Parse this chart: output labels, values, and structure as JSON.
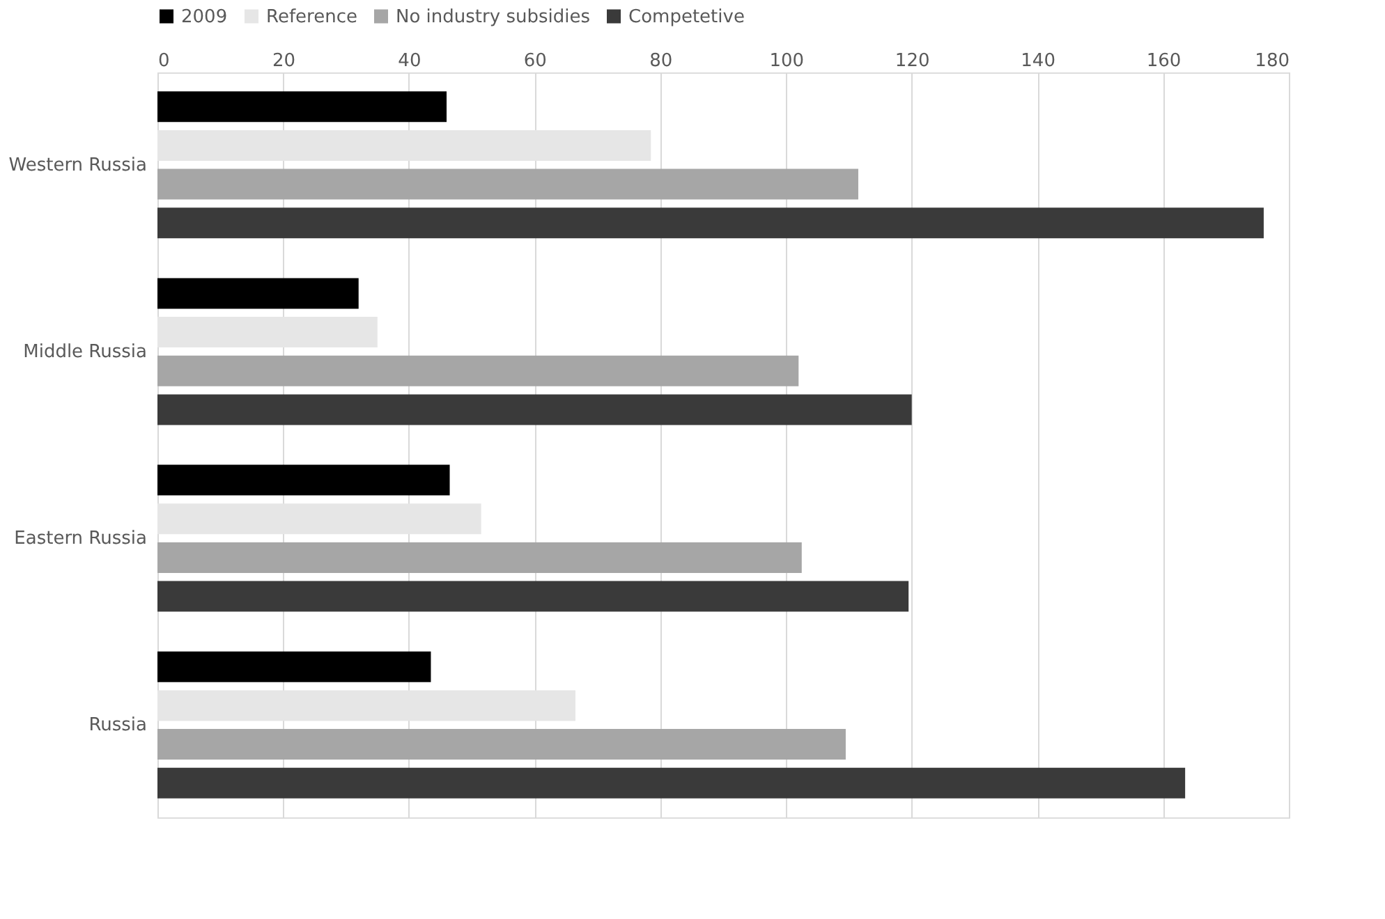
{
  "chart_data": {
    "type": "bar",
    "orientation": "horizontal",
    "categories": [
      "Western Russia",
      "Middle Russia",
      "Eastern Russia",
      "Russia"
    ],
    "series": [
      {
        "name": "2009",
        "color": "#000000",
        "values": [
          46,
          32,
          46.5,
          43.5
        ]
      },
      {
        "name": "Reference",
        "color": "#e6e6e6",
        "values": [
          78.5,
          35,
          51.5,
          66.5
        ]
      },
      {
        "name": "No industry subsidies",
        "color": "#a6a6a6",
        "values": [
          111.5,
          102,
          102.5,
          109.5
        ]
      },
      {
        "name": "Competetive",
        "color": "#3a3a3a",
        "values": [
          176,
          120,
          119.5,
          163.5
        ]
      }
    ],
    "xlim": [
      0,
      180
    ],
    "xticks": [
      0,
      20,
      40,
      60,
      80,
      100,
      120,
      140,
      160,
      180
    ],
    "grid": "x",
    "legend": "top"
  }
}
